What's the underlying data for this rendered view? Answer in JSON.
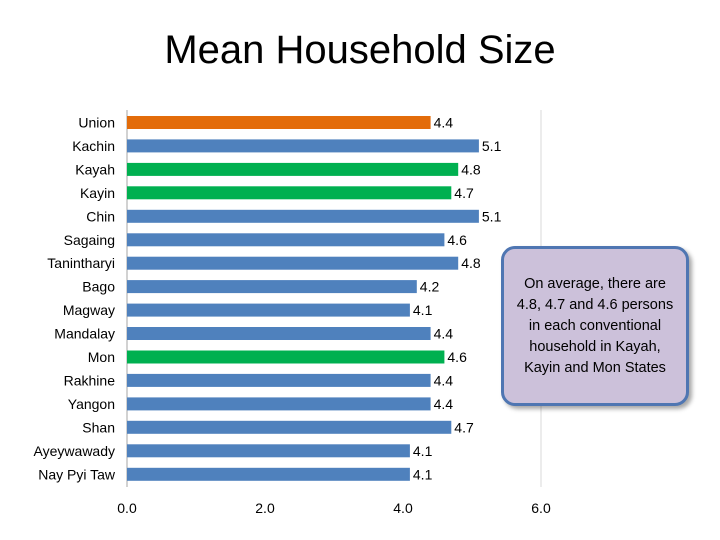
{
  "chart_data": {
    "type": "bar",
    "orientation": "horizontal",
    "title": "Mean Household Size",
    "categories": [
      "Union",
      "Kachin",
      "Kayah",
      "Kayin",
      "Chin",
      "Sagaing",
      "Tanintharyi",
      "Bago",
      "Magway",
      "Mandalay",
      "Mon",
      "Rakhine",
      "Yangon",
      "Shan",
      "Ayeywawady",
      "Nay Pyi Taw"
    ],
    "values": [
      4.4,
      5.1,
      4.8,
      4.7,
      5.1,
      4.6,
      4.8,
      4.2,
      4.1,
      4.4,
      4.6,
      4.4,
      4.4,
      4.7,
      4.1,
      4.1
    ],
    "value_labels": [
      "4.4",
      "5.1",
      "4.8",
      "4.7",
      "5.1",
      "4.6",
      "4.8",
      "4.2",
      "4.1",
      "4.4",
      "4.6",
      "4.4",
      "4.4",
      "4.7",
      "4.1",
      "4.1"
    ],
    "bar_colors": [
      "#e36c0a",
      "#4f81bd",
      "#00b050",
      "#00b050",
      "#4f81bd",
      "#4f81bd",
      "#4f81bd",
      "#4f81bd",
      "#4f81bd",
      "#4f81bd",
      "#00b050",
      "#4f81bd",
      "#4f81bd",
      "#4f81bd",
      "#4f81bd",
      "#4f81bd"
    ],
    "xlim": [
      0,
      6
    ],
    "x_ticks": [
      0,
      2,
      4,
      6
    ],
    "x_tick_labels": [
      "0.0",
      "2.0",
      "4.0",
      "6.0"
    ],
    "xlabel": "",
    "ylabel": "",
    "grid": false,
    "annotation": "On average, there are 4.8, 4.7 and 4.6 persons in each conventional household in Kayah, Kayin and Mon States"
  },
  "colors": {
    "default_bar": "#4f81bd",
    "highlight_union": "#e36c0a",
    "highlight_states": "#00b050",
    "callout_fill": "#ccc1da",
    "callout_border": "#4f76b2"
  }
}
